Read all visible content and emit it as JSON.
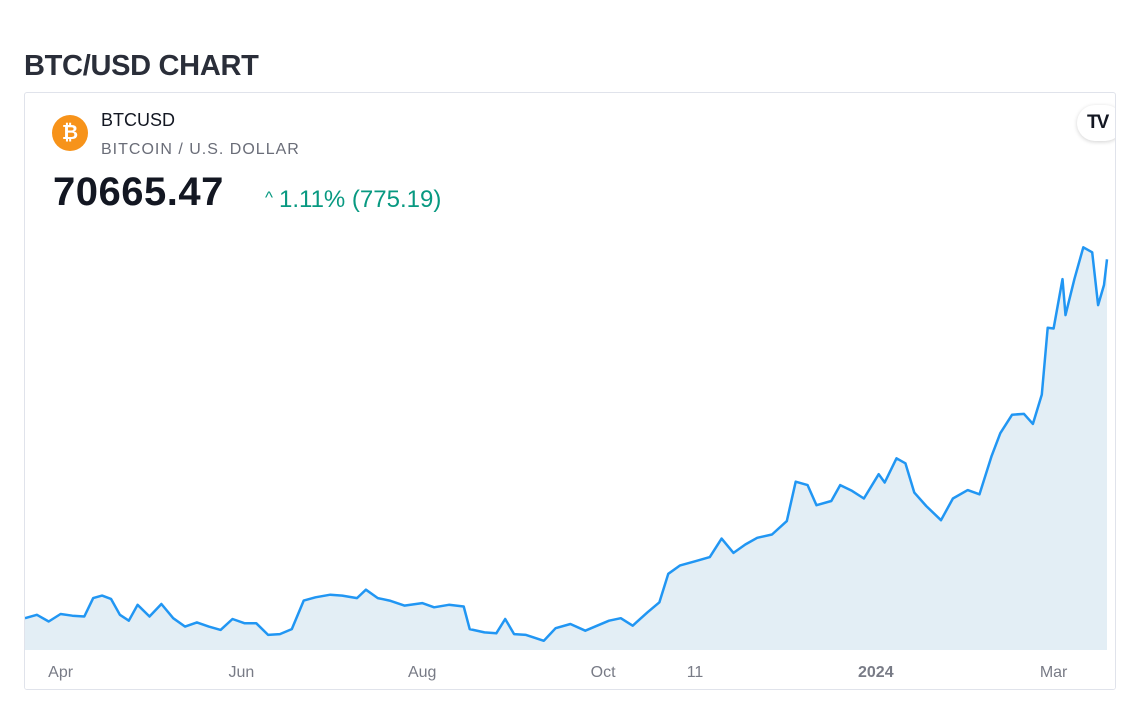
{
  "page_title": "BTC/USD CHART",
  "widget": {
    "symbol": "BTCUSD",
    "description": "BITCOIN / U.S. DOLLAR",
    "price": "70665.47",
    "change_caret": "^",
    "change": "1.11% (775.19)",
    "icon": "bitcoin-icon",
    "coin_glyph": "₿",
    "brand_logo": "tradingview-logo",
    "logo_text": "TV"
  },
  "colors": {
    "line": "#2196f3",
    "area": "#e3eef5",
    "positive": "#089981",
    "coin": "#f7931a"
  },
  "chart_data": {
    "type": "area",
    "x_range": [
      "2023-03-20",
      "2024-03-19"
    ],
    "y_range": [
      24000,
      75000
    ],
    "grid": false,
    "legend": "none",
    "x_ticks": [
      {
        "label": "Apr",
        "date": "2023-04-01",
        "bold": false
      },
      {
        "label": "Jun",
        "date": "2023-06-01",
        "bold": false
      },
      {
        "label": "Aug",
        "date": "2023-08-01",
        "bold": false
      },
      {
        "label": "Oct",
        "date": "2023-10-01",
        "bold": false
      },
      {
        "label": "11",
        "date": "2023-11-01",
        "bold": false
      },
      {
        "label": "2024",
        "date": "2024-01-01",
        "bold": true
      },
      {
        "label": "Mar",
        "date": "2024-03-01",
        "bold": false
      }
    ],
    "series": [
      {
        "points": [
          [
            "2023-03-20",
            27800
          ],
          [
            "2023-03-24",
            28200
          ],
          [
            "2023-03-28",
            27400
          ],
          [
            "2023-04-01",
            28300
          ],
          [
            "2023-04-05",
            28100
          ],
          [
            "2023-04-09",
            28000
          ],
          [
            "2023-04-12",
            30200
          ],
          [
            "2023-04-15",
            30500
          ],
          [
            "2023-04-18",
            30100
          ],
          [
            "2023-04-21",
            28200
          ],
          [
            "2023-04-24",
            27500
          ],
          [
            "2023-04-27",
            29400
          ],
          [
            "2023-05-01",
            28000
          ],
          [
            "2023-05-05",
            29500
          ],
          [
            "2023-05-09",
            27800
          ],
          [
            "2023-05-13",
            26800
          ],
          [
            "2023-05-17",
            27300
          ],
          [
            "2023-05-21",
            26800
          ],
          [
            "2023-05-25",
            26400
          ],
          [
            "2023-05-29",
            27700
          ],
          [
            "2023-06-02",
            27200
          ],
          [
            "2023-06-06",
            27200
          ],
          [
            "2023-06-10",
            25800
          ],
          [
            "2023-06-14",
            25900
          ],
          [
            "2023-06-18",
            26500
          ],
          [
            "2023-06-22",
            29900
          ],
          [
            "2023-06-26",
            30300
          ],
          [
            "2023-07-01",
            30600
          ],
          [
            "2023-07-05",
            30500
          ],
          [
            "2023-07-10",
            30200
          ],
          [
            "2023-07-13",
            31200
          ],
          [
            "2023-07-17",
            30200
          ],
          [
            "2023-07-21",
            29900
          ],
          [
            "2023-07-26",
            29300
          ],
          [
            "2023-08-01",
            29600
          ],
          [
            "2023-08-05",
            29100
          ],
          [
            "2023-08-10",
            29400
          ],
          [
            "2023-08-15",
            29200
          ],
          [
            "2023-08-17",
            26500
          ],
          [
            "2023-08-22",
            26100
          ],
          [
            "2023-08-26",
            26000
          ],
          [
            "2023-08-29",
            27700
          ],
          [
            "2023-09-01",
            25900
          ],
          [
            "2023-09-05",
            25800
          ],
          [
            "2023-09-11",
            25100
          ],
          [
            "2023-09-15",
            26600
          ],
          [
            "2023-09-20",
            27100
          ],
          [
            "2023-09-25",
            26300
          ],
          [
            "2023-09-29",
            26900
          ],
          [
            "2023-10-03",
            27500
          ],
          [
            "2023-10-07",
            27800
          ],
          [
            "2023-10-11",
            26900
          ],
          [
            "2023-10-16",
            28500
          ],
          [
            "2023-10-20",
            29700
          ],
          [
            "2023-10-23",
            33100
          ],
          [
            "2023-10-27",
            34100
          ],
          [
            "2023-11-01",
            34600
          ],
          [
            "2023-11-06",
            35100
          ],
          [
            "2023-11-10",
            37300
          ],
          [
            "2023-11-14",
            35600
          ],
          [
            "2023-11-18",
            36600
          ],
          [
            "2023-11-22",
            37400
          ],
          [
            "2023-11-27",
            37800
          ],
          [
            "2023-12-02",
            39400
          ],
          [
            "2023-12-05",
            44100
          ],
          [
            "2023-12-09",
            43700
          ],
          [
            "2023-12-12",
            41300
          ],
          [
            "2023-12-17",
            41800
          ],
          [
            "2023-12-20",
            43700
          ],
          [
            "2023-12-24",
            43000
          ],
          [
            "2023-12-28",
            42100
          ],
          [
            "2024-01-02",
            45000
          ],
          [
            "2024-01-04",
            44000
          ],
          [
            "2024-01-08",
            46900
          ],
          [
            "2024-01-11",
            46300
          ],
          [
            "2024-01-14",
            42800
          ],
          [
            "2024-01-18",
            41200
          ],
          [
            "2024-01-23",
            39500
          ],
          [
            "2024-01-27",
            42100
          ],
          [
            "2024-02-01",
            43100
          ],
          [
            "2024-02-05",
            42600
          ],
          [
            "2024-02-09",
            47100
          ],
          [
            "2024-02-12",
            49900
          ],
          [
            "2024-02-16",
            52100
          ],
          [
            "2024-02-20",
            52200
          ],
          [
            "2024-02-23",
            51000
          ],
          [
            "2024-02-26",
            54500
          ],
          [
            "2024-02-28",
            62500
          ],
          [
            "2024-03-01",
            62400
          ],
          [
            "2024-03-04",
            68300
          ],
          [
            "2024-03-05",
            64000
          ],
          [
            "2024-03-08",
            68300
          ],
          [
            "2024-03-11",
            72100
          ],
          [
            "2024-03-14",
            71500
          ],
          [
            "2024-03-16",
            65200
          ],
          [
            "2024-03-18",
            67600
          ],
          [
            "2024-03-19",
            70665
          ]
        ]
      }
    ]
  }
}
